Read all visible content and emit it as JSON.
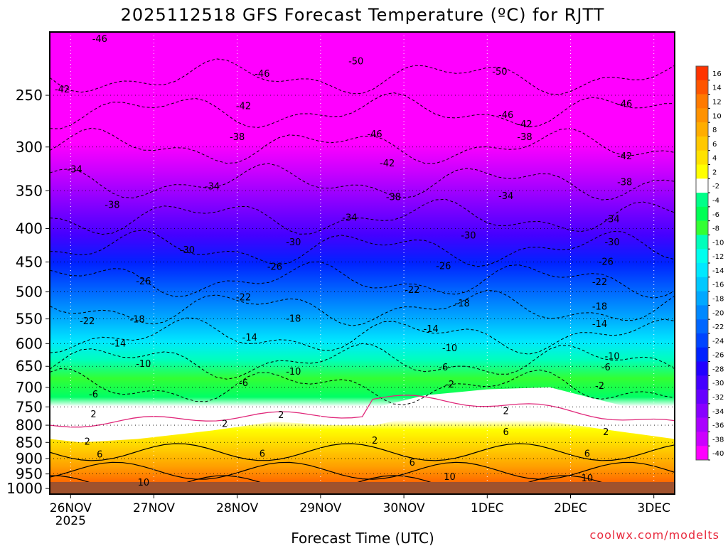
{
  "chart_data": {
    "type": "heatmap",
    "title": "2025112518 GFS Forecast Temperature (ºC) for RJTT",
    "xlabel": "Forecast Time (UTC)",
    "ylabel": "",
    "credit": "coolwx.com/modelts",
    "x_ticks": [
      {
        "label": "26NOV",
        "sub": "2025",
        "date": "2025-11-26"
      },
      {
        "label": "27NOV",
        "date": "2025-11-27"
      },
      {
        "label": "28NOV",
        "date": "2025-11-28"
      },
      {
        "label": "29NOV",
        "date": "2025-11-29"
      },
      {
        "label": "30NOV",
        "date": "2025-11-30"
      },
      {
        "label": "1DEC",
        "date": "2025-12-01"
      },
      {
        "label": "2DEC",
        "date": "2025-12-02"
      },
      {
        "label": "3DEC",
        "date": "2025-12-03"
      }
    ],
    "xlim": [
      "2025-11-25T18:00",
      "2025-12-03T06:00"
    ],
    "y_ticks": [
      "250",
      "300",
      "350",
      "400",
      "450",
      "500",
      "550",
      "600",
      "650",
      "700",
      "750",
      "800",
      "850",
      "900",
      "950",
      "1000"
    ],
    "ylim_hpa": [
      200,
      1020
    ],
    "y_scale": "log",
    "grid": "dotted",
    "colorbar": {
      "labels": [
        "16",
        "14",
        "12",
        "10",
        "8",
        "6",
        "4",
        "2",
        "-2",
        "-4",
        "-6",
        "-8",
        "-10",
        "-12",
        "-14",
        "-16",
        "-18",
        "-20",
        "-22",
        "-24",
        "-26",
        "-28",
        "-30",
        "-32",
        "-34",
        "-36",
        "-38",
        "-40"
      ],
      "colors": [
        "#ff3300",
        "#ff5500",
        "#ff7a00",
        "#ff9200",
        "#ffad00",
        "#ffc800",
        "#ffe200",
        "#ffff00",
        "#ffffff",
        "#00ff88",
        "#00ff55",
        "#33ff33",
        "#00ffbb",
        "#00ffee",
        "#00e8ff",
        "#00c8ff",
        "#00a8ff",
        "#0088ff",
        "#0066ff",
        "#0044ff",
        "#0022ff",
        "#2200ff",
        "#4400ff",
        "#6600ff",
        "#8800ff",
        "#aa00ff",
        "#cc00ff",
        "#ff00ff"
      ]
    },
    "contour_labels": [
      {
        "t": "-46",
        "x": 0.08,
        "p": 205
      },
      {
        "t": "-42",
        "x": 0.02,
        "p": 245
      },
      {
        "t": "-50",
        "x": 0.49,
        "p": 222
      },
      {
        "t": "-46",
        "x": 0.34,
        "p": 232
      },
      {
        "t": "-42",
        "x": 0.31,
        "p": 260
      },
      {
        "t": "-38",
        "x": 0.3,
        "p": 290
      },
      {
        "t": "-46",
        "x": 0.52,
        "p": 287
      },
      {
        "t": "-42",
        "x": 0.54,
        "p": 318
      },
      {
        "t": "-50",
        "x": 0.72,
        "p": 230
      },
      {
        "t": "-46",
        "x": 0.73,
        "p": 268
      },
      {
        "t": "-42",
        "x": 0.76,
        "p": 277
      },
      {
        "t": "-38",
        "x": 0.76,
        "p": 290
      },
      {
        "t": "-46",
        "x": 0.92,
        "p": 258
      },
      {
        "t": "-42",
        "x": 0.92,
        "p": 310
      },
      {
        "t": "-38",
        "x": 0.92,
        "p": 340
      },
      {
        "t": "-34",
        "x": 0.04,
        "p": 325
      },
      {
        "t": "-38",
        "x": 0.1,
        "p": 368
      },
      {
        "t": "-34",
        "x": 0.26,
        "p": 345
      },
      {
        "t": "-38",
        "x": 0.55,
        "p": 358
      },
      {
        "t": "-34",
        "x": 0.48,
        "p": 385
      },
      {
        "t": "-34",
        "x": 0.73,
        "p": 357
      },
      {
        "t": "-34",
        "x": 0.9,
        "p": 387
      },
      {
        "t": "-30",
        "x": 0.22,
        "p": 432
      },
      {
        "t": "-30",
        "x": 0.39,
        "p": 420
      },
      {
        "t": "-30",
        "x": 0.67,
        "p": 410
      },
      {
        "t": "-30",
        "x": 0.9,
        "p": 420
      },
      {
        "t": "-26",
        "x": 0.15,
        "p": 482
      },
      {
        "t": "-26",
        "x": 0.36,
        "p": 458
      },
      {
        "t": "-26",
        "x": 0.63,
        "p": 457
      },
      {
        "t": "-26",
        "x": 0.89,
        "p": 450
      },
      {
        "t": "-22",
        "x": 0.06,
        "p": 555
      },
      {
        "t": "-22",
        "x": 0.31,
        "p": 510
      },
      {
        "t": "-22",
        "x": 0.58,
        "p": 497
      },
      {
        "t": "-22",
        "x": 0.88,
        "p": 483
      },
      {
        "t": "-18",
        "x": 0.14,
        "p": 551
      },
      {
        "t": "-18",
        "x": 0.39,
        "p": 550
      },
      {
        "t": "-18",
        "x": 0.66,
        "p": 521
      },
      {
        "t": "-18",
        "x": 0.88,
        "p": 527
      },
      {
        "t": "-14",
        "x": 0.11,
        "p": 600
      },
      {
        "t": "-14",
        "x": 0.32,
        "p": 588
      },
      {
        "t": "-14",
        "x": 0.61,
        "p": 570
      },
      {
        "t": "-14",
        "x": 0.88,
        "p": 560
      },
      {
        "t": "-10",
        "x": 0.15,
        "p": 645
      },
      {
        "t": "-10",
        "x": 0.39,
        "p": 663
      },
      {
        "t": "-10",
        "x": 0.64,
        "p": 610
      },
      {
        "t": "-10",
        "x": 0.9,
        "p": 628
      },
      {
        "t": "-6",
        "x": 0.07,
        "p": 718
      },
      {
        "t": "-6",
        "x": 0.31,
        "p": 690
      },
      {
        "t": "-6",
        "x": 0.63,
        "p": 653
      },
      {
        "t": "-6",
        "x": 0.89,
        "p": 653
      },
      {
        "t": "-2",
        "x": 0.64,
        "p": 693
      },
      {
        "t": "-2",
        "x": 0.88,
        "p": 697
      },
      {
        "t": "2",
        "x": 0.07,
        "p": 770
      },
      {
        "t": "2",
        "x": 0.28,
        "p": 797
      },
      {
        "t": "2",
        "x": 0.37,
        "p": 772
      },
      {
        "t": "2",
        "x": 0.06,
        "p": 848
      },
      {
        "t": "2",
        "x": 0.52,
        "p": 845
      },
      {
        "t": "2",
        "x": 0.73,
        "p": 762
      },
      {
        "t": "2",
        "x": 0.89,
        "p": 820
      },
      {
        "t": "6",
        "x": 0.08,
        "p": 887
      },
      {
        "t": "6",
        "x": 0.34,
        "p": 885
      },
      {
        "t": "6",
        "x": 0.58,
        "p": 913
      },
      {
        "t": "6",
        "x": 0.73,
        "p": 820
      },
      {
        "t": "6",
        "x": 0.86,
        "p": 885
      },
      {
        "t": "10",
        "x": 0.15,
        "p": 980
      },
      {
        "t": "10",
        "x": 0.64,
        "p": 960
      },
      {
        "t": "10",
        "x": 0.86,
        "p": 965
      }
    ]
  }
}
